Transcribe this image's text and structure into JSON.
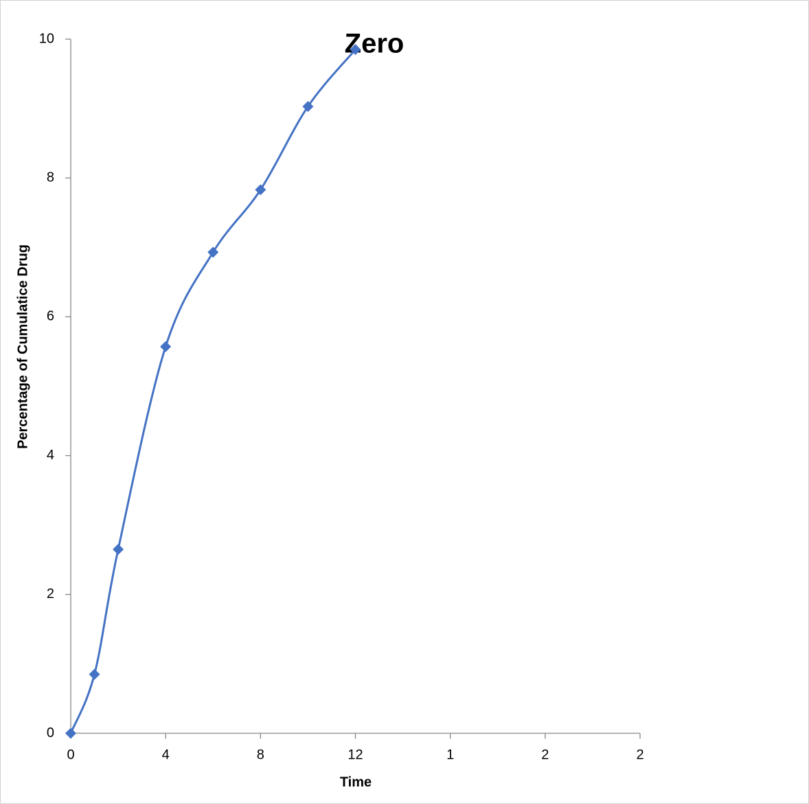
{
  "chart_data": {
    "type": "line",
    "title": "Zero",
    "x_label": "Time",
    "y_label": "Percentage of Cumulatice Drug",
    "x": [
      0,
      1,
      2,
      4,
      6,
      8,
      10,
      12
    ],
    "values": [
      0,
      0.85,
      2.65,
      5.57,
      6.93,
      7.83,
      9.03,
      9.85
    ],
    "color": "#4472c4",
    "xlim": [
      0,
      24
    ],
    "xticks": [
      0,
      4,
      8,
      12,
      {
        "value": 16,
        "label": "1"
      },
      {
        "value": 20,
        "label": "2"
      },
      {
        "value": 24,
        "label": "2"
      }
    ],
    "ylim": [
      0,
      10
    ],
    "yticks": [
      0,
      2,
      4,
      6,
      8,
      10
    ],
    "smooth": true,
    "markers": true,
    "grid": false
  }
}
